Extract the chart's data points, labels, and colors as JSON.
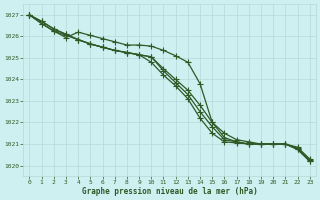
{
  "xlabel": "Graphe pression niveau de la mer (hPa)",
  "xlim": [
    -0.5,
    23.5
  ],
  "ylim": [
    1019.5,
    1027.5
  ],
  "yticks": [
    1020,
    1021,
    1022,
    1023,
    1024,
    1025,
    1026,
    1027
  ],
  "xticks": [
    0,
    1,
    2,
    3,
    4,
    5,
    6,
    7,
    8,
    9,
    10,
    11,
    12,
    13,
    14,
    15,
    16,
    17,
    18,
    19,
    20,
    21,
    22,
    23
  ],
  "background_color": "#cff0f0",
  "grid_color": "#b8d8d8",
  "line_color": "#2d5a27",
  "lines": [
    [
      1027.0,
      1026.7,
      1026.35,
      1026.1,
      1025.85,
      1025.65,
      1025.5,
      1025.35,
      1025.25,
      1025.15,
      1025.05,
      1024.5,
      1024.0,
      1023.5,
      1022.8,
      1022.0,
      1021.5,
      1021.2,
      1021.1,
      1021.0,
      1021.0,
      1021.0,
      1020.85,
      1020.3
    ],
    [
      1027.0,
      1026.7,
      1026.35,
      1026.1,
      1025.85,
      1025.65,
      1025.5,
      1025.35,
      1025.25,
      1025.15,
      1025.05,
      1024.4,
      1023.85,
      1023.3,
      1022.5,
      1021.8,
      1021.2,
      1021.1,
      1021.0,
      1021.0,
      1021.0,
      1021.0,
      1020.8,
      1020.25
    ],
    [
      1027.0,
      1026.6,
      1026.25,
      1026.05,
      1025.85,
      1025.65,
      1025.5,
      1025.35,
      1025.25,
      1025.15,
      1024.8,
      1024.2,
      1023.7,
      1023.1,
      1022.2,
      1021.5,
      1021.1,
      1021.05,
      1021.0,
      1021.0,
      1021.0,
      1021.0,
      1020.75,
      1020.2
    ],
    [
      1027.0,
      1026.6,
      1026.25,
      1025.95,
      1026.2,
      1026.05,
      1025.9,
      1025.75,
      1025.6,
      1025.6,
      1025.55,
      1025.35,
      1025.1,
      1024.8,
      1023.8,
      1022.0,
      1021.3,
      1021.1,
      1021.0,
      1021.0,
      1021.0,
      1021.0,
      1020.75,
      1020.2
    ]
  ],
  "marker": "+",
  "markersize": 4,
  "linewidth": 0.9
}
